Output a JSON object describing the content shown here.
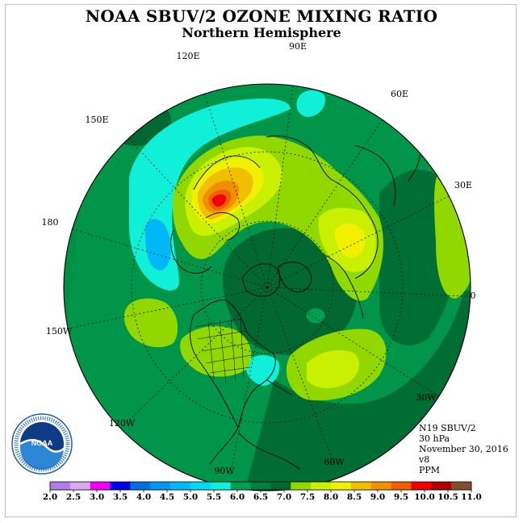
{
  "header": {
    "title": "NOAA SBUV/2 OZONE MIXING RATIO",
    "subtitle": "Northern Hemisphere"
  },
  "map": {
    "projection": "polar stereographic, north pole centered",
    "longitude_labels": [
      "90E",
      "60E",
      "30E",
      "0",
      "30W",
      "60W",
      "90W",
      "120W",
      "150W",
      "180",
      "150E",
      "120E"
    ]
  },
  "info": {
    "satellite": "N19 SBUV/2",
    "level": "30 hPa",
    "date": "November 30, 2016",
    "version": "v8",
    "units": "PPM"
  },
  "colorbar": {
    "labels": [
      "2.0",
      "2.5",
      "3.0",
      "3.5",
      "4.0",
      "4.5",
      "5.0",
      "5.5",
      "6.0",
      "6.5",
      "7.0",
      "7.5",
      "8.0",
      "8.5",
      "9.0",
      "9.5",
      "10.0",
      "10.5",
      "11.0"
    ],
    "colors": [
      "#b07ce8",
      "#d8a8f0",
      "#f000f0",
      "#0000e8",
      "#0070e0",
      "#0098f0",
      "#00b8f8",
      "#00d8f8",
      "#10f0d8",
      "#00a050",
      "#008040",
      "#006830",
      "#90d800",
      "#c8f000",
      "#f0f000",
      "#f0c000",
      "#f09000",
      "#f06000",
      "#f00000",
      "#b00000",
      "#805030"
    ]
  },
  "logo": {
    "text": "NOAA",
    "ring_text": "NATIONAL OCEANIC AND ATMOSPHERIC ADMINISTRATION · U.S. DEPARTMENT OF COMMERCE"
  }
}
